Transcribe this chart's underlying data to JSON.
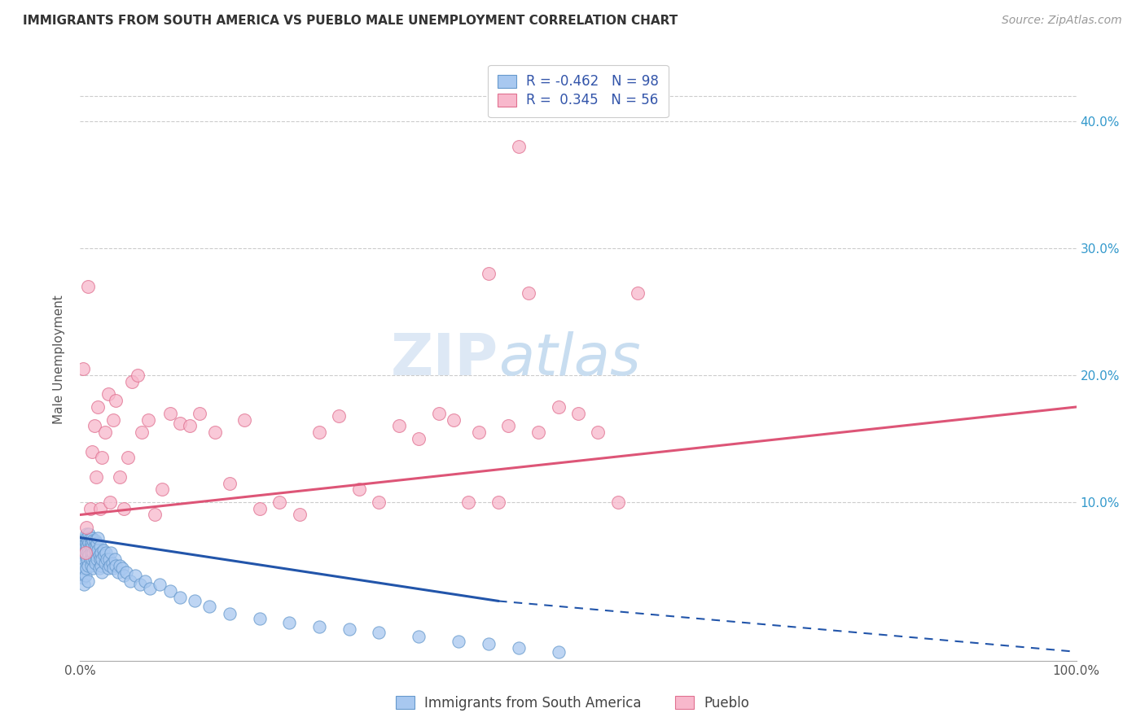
{
  "title": "IMMIGRANTS FROM SOUTH AMERICA VS PUEBLO MALE UNEMPLOYMENT CORRELATION CHART",
  "source": "Source: ZipAtlas.com",
  "ylabel": "Male Unemployment",
  "legend_label1": "Immigrants from South America",
  "legend_label2": "Pueblo",
  "R1": -0.462,
  "N1": 98,
  "R2": 0.345,
  "N2": 56,
  "color_blue_fill": "#A8C8F0",
  "color_blue_edge": "#6699CC",
  "color_pink_fill": "#F8B8CC",
  "color_pink_edge": "#E07090",
  "color_blue_line": "#2255AA",
  "color_pink_line": "#DD5577",
  "color_grid": "#CCCCCC",
  "yaxis_labels": [
    "10.0%",
    "20.0%",
    "30.0%",
    "40.0%"
  ],
  "yaxis_values": [
    0.1,
    0.2,
    0.3,
    0.4
  ],
  "xlim": [
    0.0,
    1.0
  ],
  "ylim": [
    -0.025,
    0.45
  ],
  "blue_line_x0": 0.0,
  "blue_line_y0": 0.072,
  "blue_line_x1": 0.42,
  "blue_line_y1": 0.022,
  "blue_line_dash_x1": 1.0,
  "blue_line_dash_y1": -0.018,
  "pink_line_x0": 0.0,
  "pink_line_y0": 0.09,
  "pink_line_x1": 1.0,
  "pink_line_y1": 0.175,
  "blue_scatter_x": [
    0.001,
    0.002,
    0.002,
    0.003,
    0.003,
    0.003,
    0.004,
    0.004,
    0.004,
    0.004,
    0.005,
    0.005,
    0.005,
    0.005,
    0.006,
    0.006,
    0.006,
    0.006,
    0.007,
    0.007,
    0.007,
    0.008,
    0.008,
    0.008,
    0.008,
    0.009,
    0.009,
    0.009,
    0.01,
    0.01,
    0.01,
    0.011,
    0.011,
    0.011,
    0.012,
    0.012,
    0.012,
    0.013,
    0.013,
    0.013,
    0.014,
    0.014,
    0.015,
    0.015,
    0.015,
    0.016,
    0.016,
    0.017,
    0.017,
    0.018,
    0.018,
    0.019,
    0.019,
    0.02,
    0.02,
    0.021,
    0.021,
    0.022,
    0.022,
    0.023,
    0.024,
    0.025,
    0.026,
    0.027,
    0.028,
    0.029,
    0.03,
    0.031,
    0.032,
    0.033,
    0.035,
    0.036,
    0.038,
    0.04,
    0.042,
    0.044,
    0.046,
    0.05,
    0.055,
    0.06,
    0.065,
    0.07,
    0.08,
    0.09,
    0.1,
    0.115,
    0.13,
    0.15,
    0.18,
    0.21,
    0.24,
    0.27,
    0.3,
    0.34,
    0.38,
    0.41,
    0.44,
    0.48
  ],
  "blue_scatter_y": [
    0.055,
    0.06,
    0.045,
    0.065,
    0.05,
    0.04,
    0.07,
    0.055,
    0.048,
    0.035,
    0.065,
    0.072,
    0.058,
    0.042,
    0.068,
    0.075,
    0.062,
    0.048,
    0.072,
    0.065,
    0.055,
    0.07,
    0.06,
    0.05,
    0.038,
    0.068,
    0.075,
    0.058,
    0.065,
    0.072,
    0.055,
    0.068,
    0.06,
    0.05,
    0.072,
    0.065,
    0.055,
    0.06,
    0.07,
    0.048,
    0.065,
    0.055,
    0.07,
    0.062,
    0.052,
    0.065,
    0.058,
    0.068,
    0.055,
    0.062,
    0.072,
    0.058,
    0.048,
    0.065,
    0.055,
    0.06,
    0.05,
    0.055,
    0.045,
    0.062,
    0.058,
    0.052,
    0.06,
    0.055,
    0.048,
    0.055,
    0.05,
    0.06,
    0.052,
    0.048,
    0.055,
    0.05,
    0.045,
    0.05,
    0.048,
    0.042,
    0.045,
    0.038,
    0.042,
    0.035,
    0.038,
    0.032,
    0.035,
    0.03,
    0.025,
    0.022,
    0.018,
    0.012,
    0.008,
    0.005,
    0.002,
    0.0,
    -0.003,
    -0.006,
    -0.01,
    -0.012,
    -0.015,
    -0.018
  ],
  "pink_scatter_x": [
    0.003,
    0.005,
    0.006,
    0.008,
    0.01,
    0.012,
    0.014,
    0.016,
    0.018,
    0.02,
    0.022,
    0.025,
    0.028,
    0.03,
    0.033,
    0.036,
    0.04,
    0.044,
    0.048,
    0.052,
    0.058,
    0.062,
    0.068,
    0.075,
    0.082,
    0.09,
    0.1,
    0.11,
    0.12,
    0.135,
    0.15,
    0.165,
    0.18,
    0.2,
    0.22,
    0.24,
    0.26,
    0.28,
    0.3,
    0.32,
    0.34,
    0.36,
    0.375,
    0.39,
    0.4,
    0.41,
    0.42,
    0.43,
    0.44,
    0.45,
    0.46,
    0.48,
    0.5,
    0.52,
    0.54,
    0.56
  ],
  "pink_scatter_y": [
    0.205,
    0.06,
    0.08,
    0.27,
    0.095,
    0.14,
    0.16,
    0.12,
    0.175,
    0.095,
    0.135,
    0.155,
    0.185,
    0.1,
    0.165,
    0.18,
    0.12,
    0.095,
    0.135,
    0.195,
    0.2,
    0.155,
    0.165,
    0.09,
    0.11,
    0.17,
    0.162,
    0.16,
    0.17,
    0.155,
    0.115,
    0.165,
    0.095,
    0.1,
    0.09,
    0.155,
    0.168,
    0.11,
    0.1,
    0.16,
    0.15,
    0.17,
    0.165,
    0.1,
    0.155,
    0.28,
    0.1,
    0.16,
    0.38,
    0.265,
    0.155,
    0.175,
    0.17,
    0.155,
    0.1,
    0.265
  ]
}
